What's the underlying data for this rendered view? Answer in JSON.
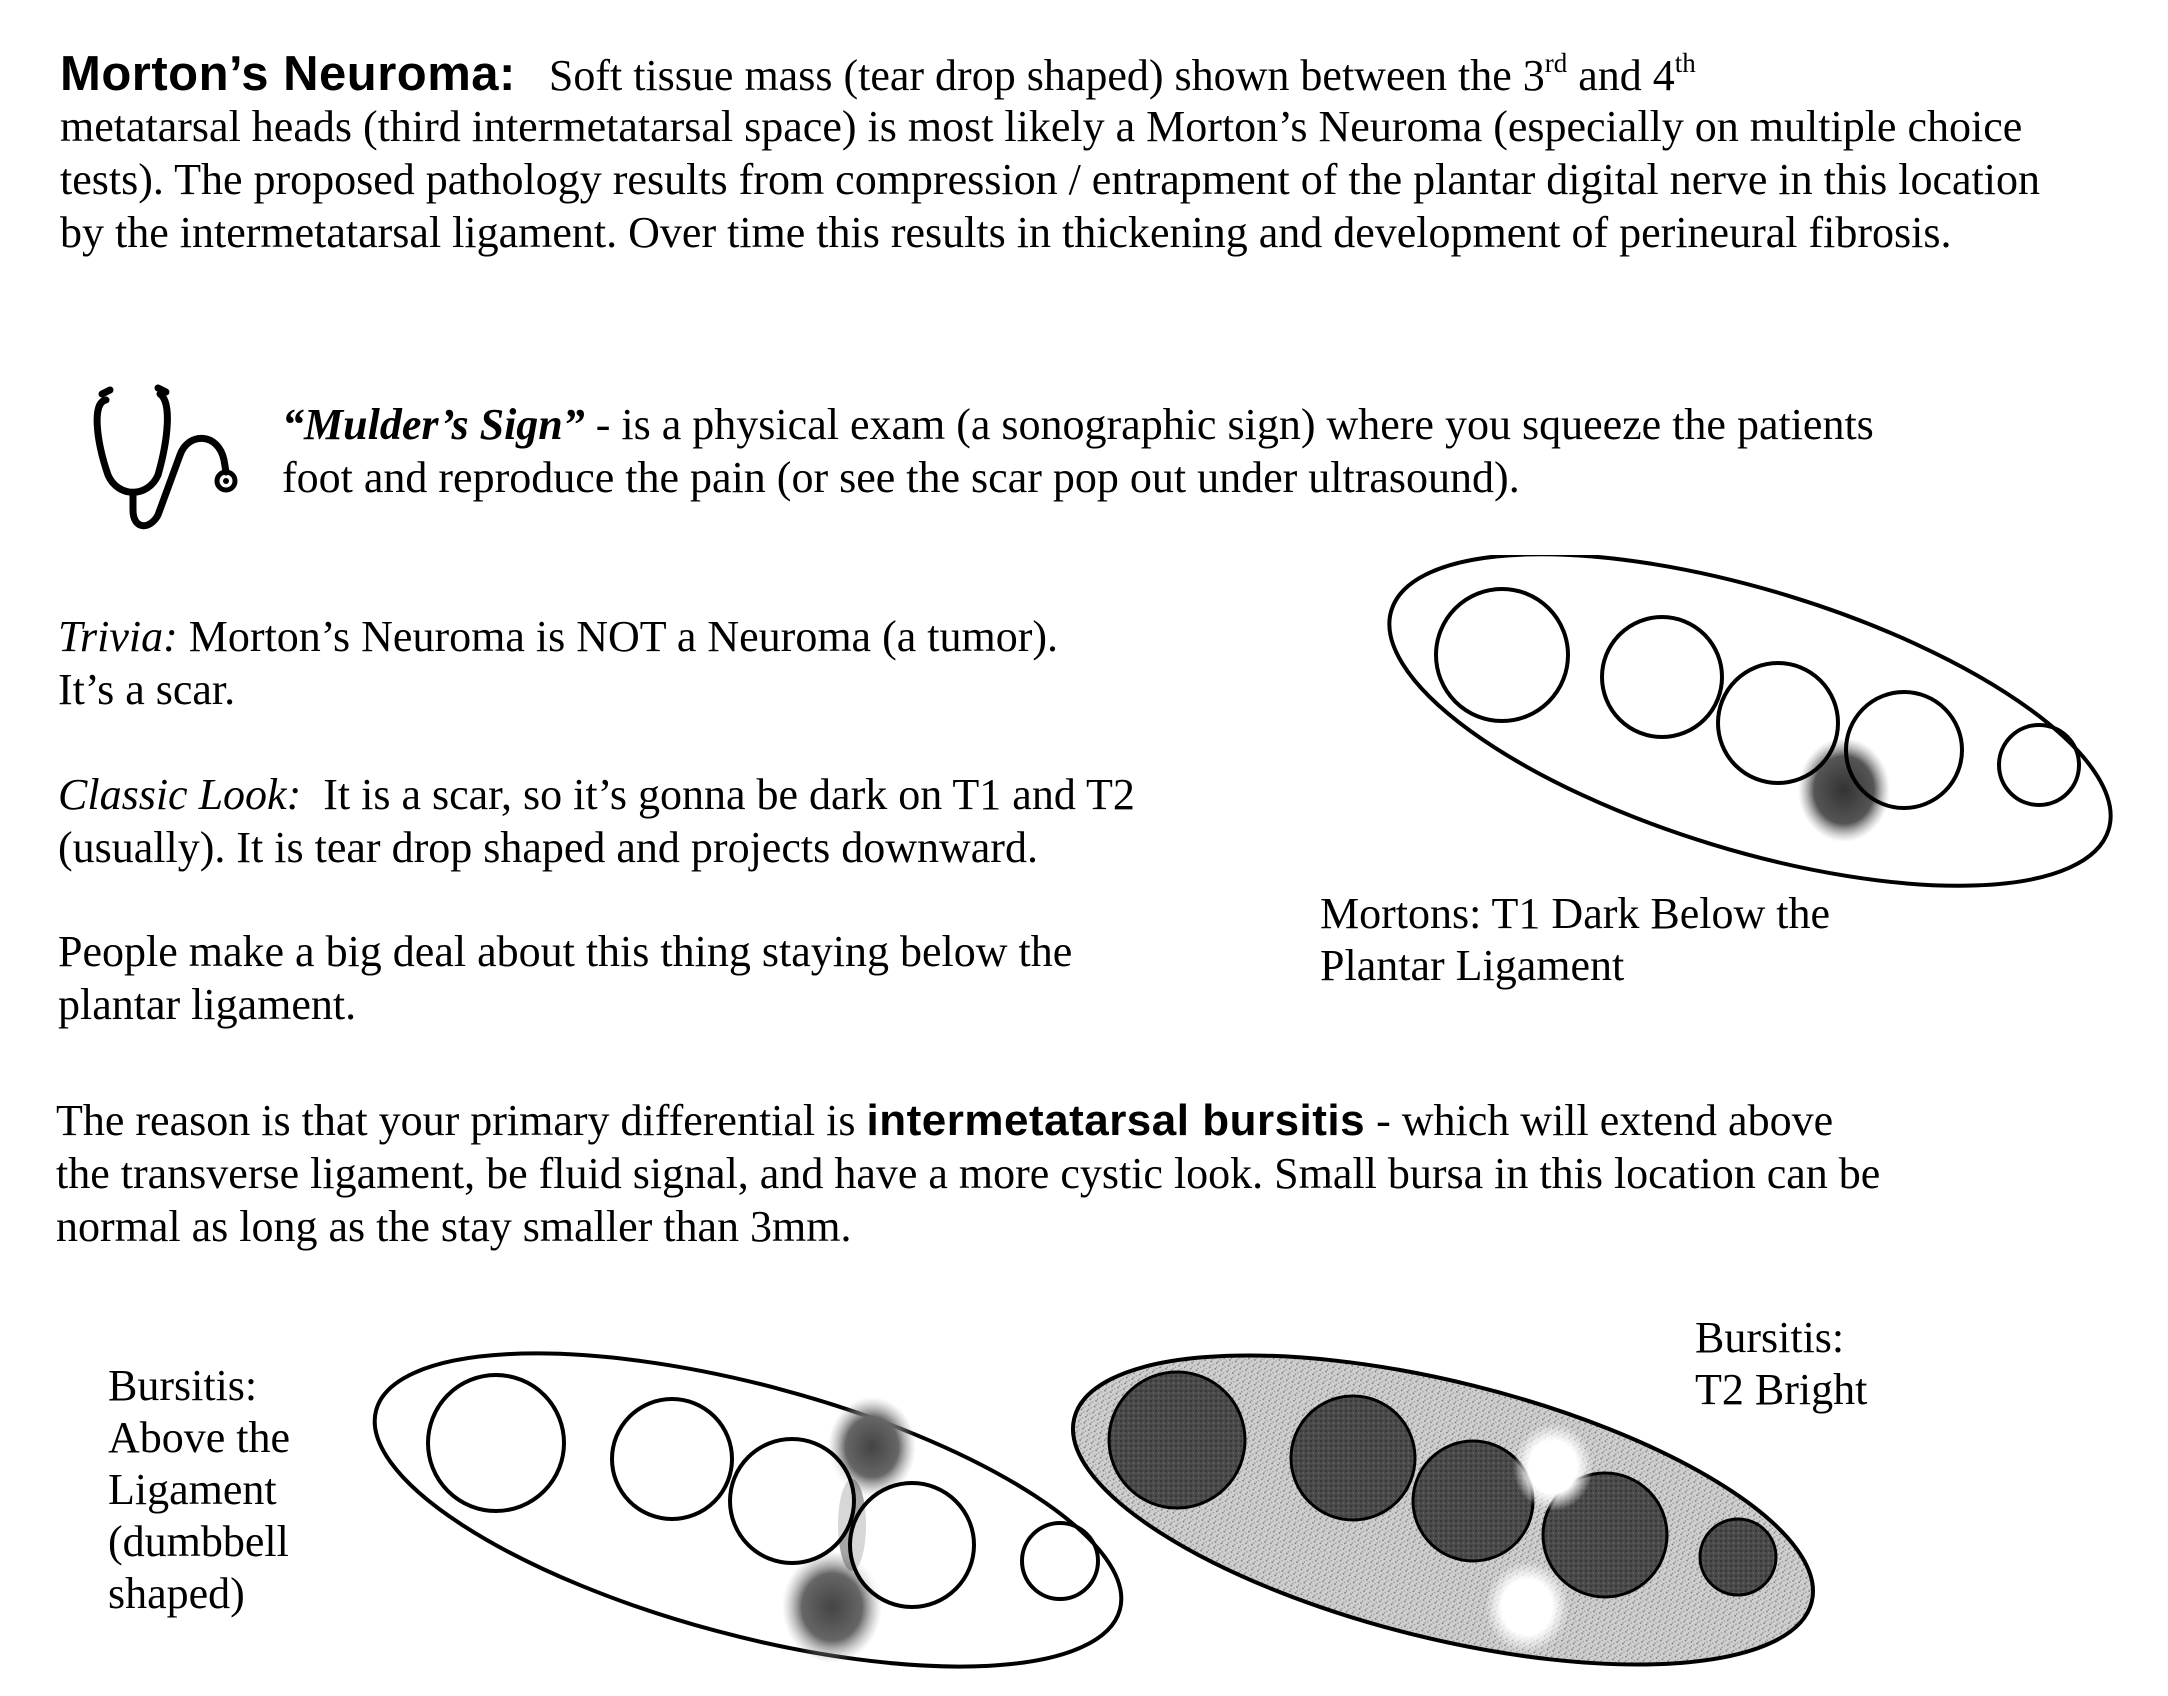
{
  "intro": {
    "title": "Morton’s Neuroma:",
    "line1_text": "Soft tissue mass (tear drop shaped) shown between the 3",
    "sup_rd": "rd",
    "and_text": "and 4",
    "sup_th": "th",
    "paragraph_rest": "metatarsal heads (third intermetatarsal space) is most likely a Morton’s Neuroma (especially on multiple choice tests).  The proposed pathology results from compression / entrapment of the plantar digital nerve in this location by the intermetatarsal ligament. Over time this results in thickening and development of perineural fibrosis."
  },
  "mulder": {
    "icon": "stethoscope-icon",
    "term": "“Mulder’s Sign”",
    "line1": "- is a physical exam (a sonographic sign) where you squeeze the patients",
    "line2": "foot and reproduce the pain (or see the scar pop out under ultrasound)."
  },
  "trivia": {
    "label": "Trivia:",
    "line1": "Morton’s Neuroma is NOT a Neuroma (a tumor).",
    "line2": "It’s a scar."
  },
  "classic": {
    "label": "Classic Look:",
    "line1": "It is a scar, so it’s gonna be dark on T1 and T2",
    "line2": "(usually).  It is tear drop shaped and projects downward."
  },
  "people": {
    "line1": "People make a big deal about this thing staying below the",
    "line2": "plantar ligament."
  },
  "mortons_figure": {
    "caption_line1": "Mortons: T1 Dark Below the",
    "caption_line2": "Plantar Ligament"
  },
  "reason": {
    "pre": "The reason is that your primary differential is",
    "bold": "intermetatarsal bursitis",
    "line1_post": "- which will extend above",
    "line2": "the transverse ligament, be fluid signal, and have a more cystic look.  Small bursa in this location can be",
    "line3": "normal as long as the stay smaller than 3mm."
  },
  "bursitis_left": {
    "caption": [
      "Bursitis:",
      "Above the",
      "Ligament",
      "(dumbbell",
      "shaped)"
    ]
  },
  "bursitis_right": {
    "caption": [
      "Bursitis:",
      "T2 Bright"
    ]
  },
  "colors": {
    "ink": "#000000",
    "paper": "#ffffff",
    "speckle": "#c8c8c8",
    "dark_fill": "#444444"
  }
}
